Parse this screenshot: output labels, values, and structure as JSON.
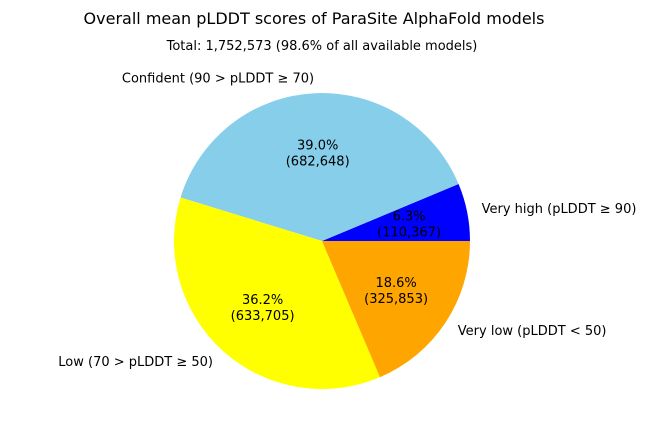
{
  "chart_data": {
    "type": "pie",
    "title": "Overall mean pLDDT scores of ParaSite AlphaFold models",
    "subtitle": "Total: 1,752,573 (98.6% of all available models)",
    "slices": [
      {
        "label": "Very high (pLDDT ≥ 90)",
        "value": 110367,
        "percent_text": "6.3%",
        "count_text": "(110,367)",
        "color": "#0000ff"
      },
      {
        "label": "Confident (90 > pLDDT ≥ 70)",
        "value": 682648,
        "percent_text": "39.0%",
        "count_text": "(682,648)",
        "color": "#87ceeb"
      },
      {
        "label": "Low (70 > pLDDT ≥ 50)",
        "value": 633705,
        "percent_text": "36.2%",
        "count_text": "(633,705)",
        "color": "#ffff00"
      },
      {
        "label": "Very low (pLDDT < 50)",
        "value": 325853,
        "percent_text": "18.6%",
        "count_text": "(325,853)",
        "color": "#ffa500"
      }
    ],
    "start_angle_deg": 0,
    "direction": "counterclockwise",
    "legend": "none"
  }
}
